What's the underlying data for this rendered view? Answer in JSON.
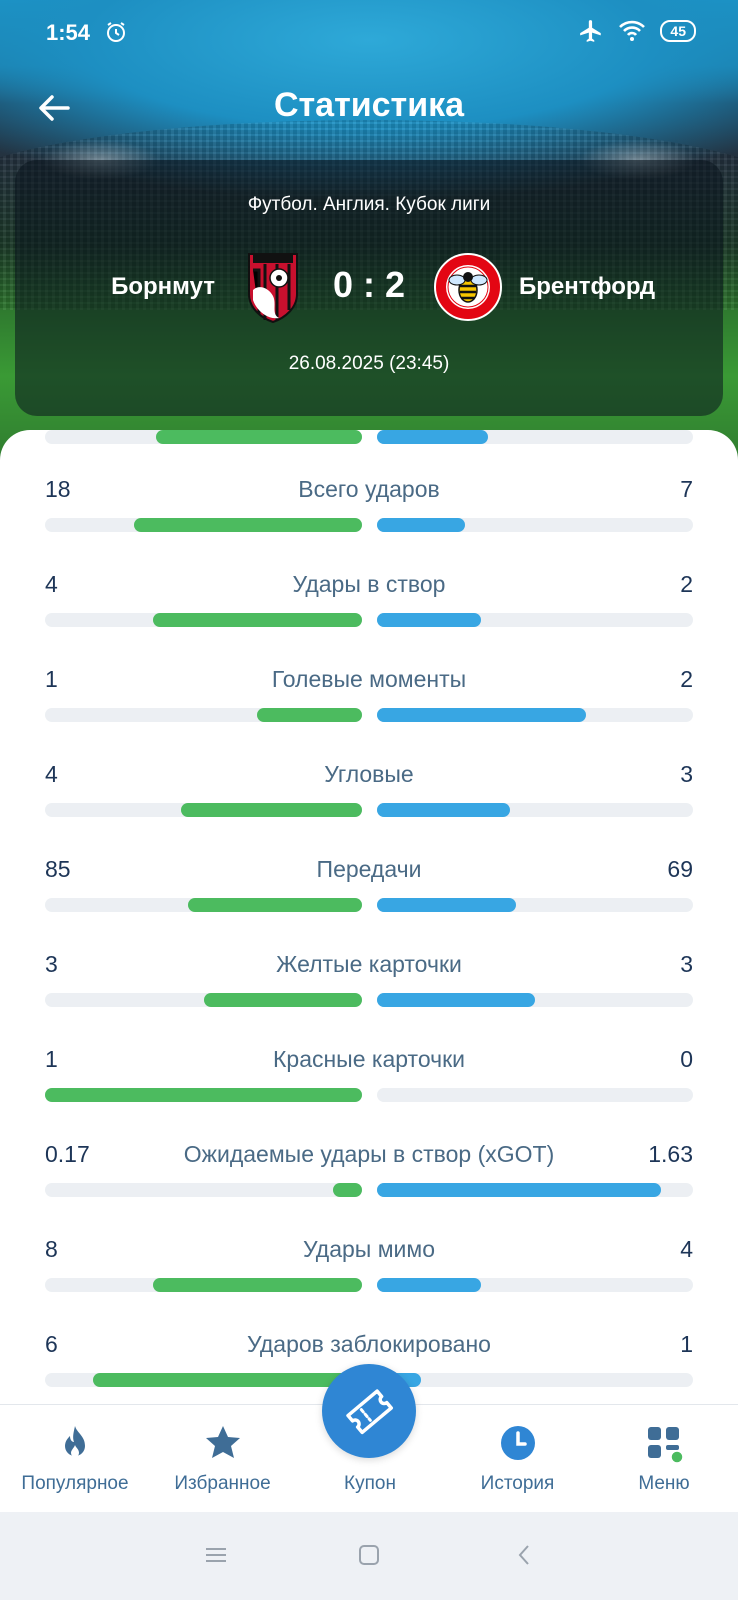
{
  "status_bar": {
    "time": "1:54",
    "battery": "45"
  },
  "header": {
    "title": "Статистика"
  },
  "match": {
    "league": "Футбол. Англия. Кубок лиги",
    "home_team": "Борнмут",
    "away_team": "Брентфорд",
    "score": "0 : 2",
    "datetime": "26.08.2025 (23:45)"
  },
  "stats": [
    {
      "label": "Всего ударов",
      "home": "18",
      "away": "7",
      "home_frac": 0.72,
      "away_frac": 0.28
    },
    {
      "label": "Удары в створ",
      "home": "4",
      "away": "2",
      "home_frac": 0.66,
      "away_frac": 0.33
    },
    {
      "label": "Голевые моменты",
      "home": "1",
      "away": "2",
      "home_frac": 0.33,
      "away_frac": 0.66
    },
    {
      "label": "Угловые",
      "home": "4",
      "away": "3",
      "home_frac": 0.57,
      "away_frac": 0.42
    },
    {
      "label": "Передачи",
      "home": "85",
      "away": "69",
      "home_frac": 0.55,
      "away_frac": 0.44
    },
    {
      "label": "Желтые карточки",
      "home": "3",
      "away": "3",
      "home_frac": 0.5,
      "away_frac": 0.5
    },
    {
      "label": "Красные карточки",
      "home": "1",
      "away": "0",
      "home_frac": 1.0,
      "away_frac": 0.0
    },
    {
      "label": "Ожидаемые удары в створ (xGOT)",
      "home": "0.17",
      "away": "1.63",
      "home_frac": 0.09,
      "away_frac": 0.9
    },
    {
      "label": "Удары мимо",
      "home": "8",
      "away": "4",
      "home_frac": 0.66,
      "away_frac": 0.33
    },
    {
      "label": "Ударов заблокировано",
      "home": "6",
      "away": "1",
      "home_frac": 0.85,
      "away_frac": 0.14
    }
  ],
  "partial_row": {
    "home_frac": 0.65,
    "away_frac": 0.35
  },
  "bottom_nav": {
    "popular": "Популярное",
    "favorites": "Избранное",
    "coupon": "Купон",
    "history": "История",
    "menu": "Меню"
  },
  "colors": {
    "home_bar": "#4cbb5f",
    "away_bar": "#38a6e3",
    "accent": "#2f86d4"
  }
}
